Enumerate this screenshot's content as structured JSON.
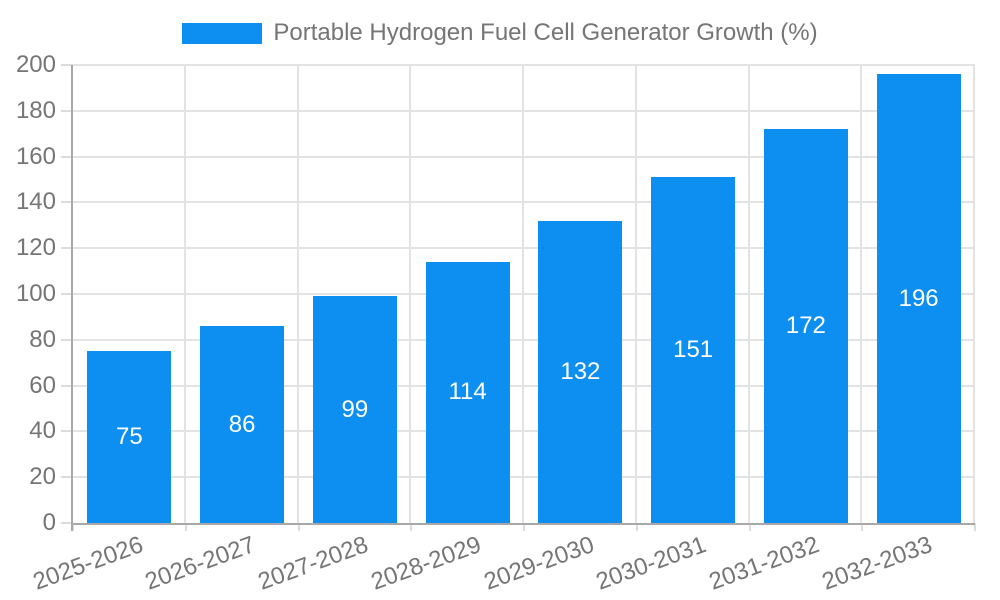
{
  "chart_data": {
    "type": "bar",
    "title": "Portable Hydrogen Fuel Cell Generator Growth (%)",
    "categories": [
      "2025-2026",
      "2026-2027",
      "2027-2028",
      "2028-2029",
      "2029-2030",
      "2030-2031",
      "2031-2032",
      "2032-2033"
    ],
    "values": [
      75,
      86,
      99,
      114,
      132,
      151,
      172,
      196
    ],
    "value_labels": [
      "75",
      "86",
      "99",
      "114",
      "132",
      "151",
      "172",
      "196"
    ],
    "xlabel": "",
    "ylabel": "",
    "ylim": [
      0,
      200
    ],
    "yticks": [
      0,
      20,
      40,
      60,
      80,
      100,
      120,
      140,
      160,
      180,
      200
    ],
    "grid": true,
    "legend_position": "top",
    "colors": {
      "bar": "#0d8ff2",
      "value_label": "#ffffff",
      "tick_label": "#757575",
      "legend_text": "#757575",
      "gridline": "#e3e3e3",
      "tick": "#dcdcdc",
      "axis": "#a8a8a8",
      "background": "#ffffff"
    }
  }
}
